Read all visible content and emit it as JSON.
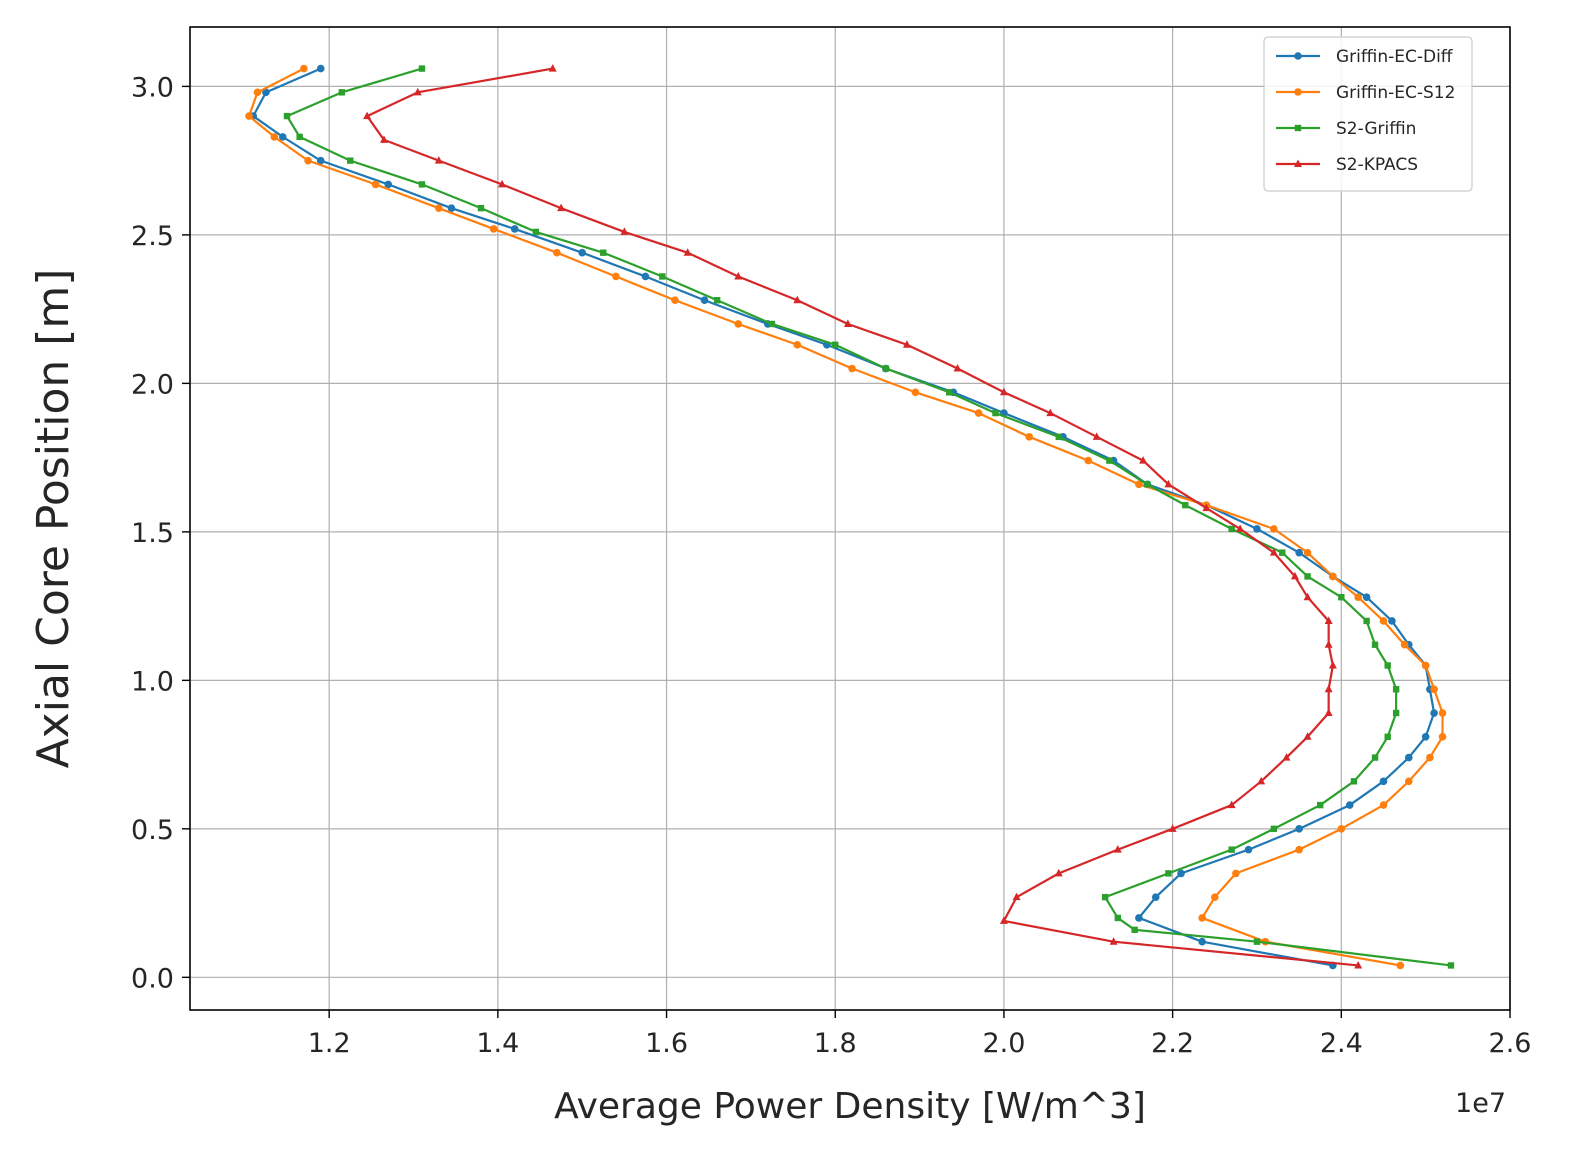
{
  "chart_data": {
    "type": "line",
    "title": "",
    "xlabel": "Average Power Density [W/m^3]",
    "ylabel": "Axial Core Position [m]",
    "x_offset_label": "1e7",
    "xlim": [
      1.035,
      2.6
    ],
    "ylim": [
      -0.11,
      3.2
    ],
    "x_ticks": [
      1.2,
      1.4,
      1.6,
      1.8,
      2.0,
      2.2,
      2.4,
      2.6
    ],
    "x_tick_labels": [
      "1.2",
      "1.4",
      "1.6",
      "1.8",
      "2.0",
      "2.2",
      "2.4",
      "2.6"
    ],
    "y_ticks": [
      0.0,
      0.5,
      1.0,
      1.5,
      2.0,
      2.5,
      3.0
    ],
    "y_tick_labels": [
      "0.0",
      "0.5",
      "1.0",
      "1.5",
      "2.0",
      "2.5",
      "3.0"
    ],
    "grid": true,
    "legend_position": "top-right",
    "series": [
      {
        "name": "Griffin-EC-Diff",
        "color": "#1f77b4",
        "marker": "circle",
        "points": [
          [
            2.39,
            0.04
          ],
          [
            2.235,
            0.12
          ],
          [
            2.16,
            0.2
          ],
          [
            2.18,
            0.27
          ],
          [
            2.21,
            0.35
          ],
          [
            2.29,
            0.43
          ],
          [
            2.35,
            0.5
          ],
          [
            2.41,
            0.58
          ],
          [
            2.45,
            0.66
          ],
          [
            2.48,
            0.74
          ],
          [
            2.5,
            0.81
          ],
          [
            2.51,
            0.89
          ],
          [
            2.505,
            0.97
          ],
          [
            2.5,
            1.05
          ],
          [
            2.48,
            1.12
          ],
          [
            2.46,
            1.2
          ],
          [
            2.43,
            1.28
          ],
          [
            2.39,
            1.35
          ],
          [
            2.35,
            1.43
          ],
          [
            2.3,
            1.51
          ],
          [
            2.24,
            1.59
          ],
          [
            2.17,
            1.66
          ],
          [
            2.13,
            1.74
          ],
          [
            2.07,
            1.82
          ],
          [
            2.0,
            1.9
          ],
          [
            1.94,
            1.97
          ],
          [
            1.86,
            2.05
          ],
          [
            1.79,
            2.13
          ],
          [
            1.72,
            2.2
          ],
          [
            1.645,
            2.28
          ],
          [
            1.575,
            2.36
          ],
          [
            1.5,
            2.44
          ],
          [
            1.42,
            2.52
          ],
          [
            1.345,
            2.59
          ],
          [
            1.27,
            2.67
          ],
          [
            1.19,
            2.75
          ],
          [
            1.145,
            2.83
          ],
          [
            1.11,
            2.9
          ],
          [
            1.125,
            2.98
          ],
          [
            1.19,
            3.06
          ]
        ]
      },
      {
        "name": "Griffin-EC-S12",
        "color": "#ff7f0e",
        "marker": "circle",
        "points": [
          [
            2.47,
            0.04
          ],
          [
            2.31,
            0.12
          ],
          [
            2.235,
            0.2
          ],
          [
            2.25,
            0.27
          ],
          [
            2.275,
            0.35
          ],
          [
            2.35,
            0.43
          ],
          [
            2.4,
            0.5
          ],
          [
            2.45,
            0.58
          ],
          [
            2.48,
            0.66
          ],
          [
            2.505,
            0.74
          ],
          [
            2.52,
            0.81
          ],
          [
            2.52,
            0.89
          ],
          [
            2.51,
            0.97
          ],
          [
            2.5,
            1.05
          ],
          [
            2.475,
            1.12
          ],
          [
            2.45,
            1.2
          ],
          [
            2.42,
            1.28
          ],
          [
            2.39,
            1.35
          ],
          [
            2.36,
            1.43
          ],
          [
            2.32,
            1.51
          ],
          [
            2.24,
            1.59
          ],
          [
            2.16,
            1.66
          ],
          [
            2.1,
            1.74
          ],
          [
            2.03,
            1.82
          ],
          [
            1.97,
            1.9
          ],
          [
            1.895,
            1.97
          ],
          [
            1.82,
            2.05
          ],
          [
            1.755,
            2.13
          ],
          [
            1.685,
            2.2
          ],
          [
            1.61,
            2.28
          ],
          [
            1.54,
            2.36
          ],
          [
            1.47,
            2.44
          ],
          [
            1.395,
            2.52
          ],
          [
            1.33,
            2.59
          ],
          [
            1.255,
            2.67
          ],
          [
            1.175,
            2.75
          ],
          [
            1.135,
            2.83
          ],
          [
            1.105,
            2.9
          ],
          [
            1.115,
            2.98
          ],
          [
            1.17,
            3.06
          ]
        ]
      },
      {
        "name": "S2-Griffin",
        "color": "#2ca02c",
        "marker": "square",
        "points": [
          [
            2.53,
            0.04
          ],
          [
            2.3,
            0.12
          ],
          [
            2.155,
            0.16
          ],
          [
            2.135,
            0.2
          ],
          [
            2.12,
            0.27
          ],
          [
            2.195,
            0.35
          ],
          [
            2.27,
            0.43
          ],
          [
            2.32,
            0.5
          ],
          [
            2.375,
            0.58
          ],
          [
            2.415,
            0.66
          ],
          [
            2.44,
            0.74
          ],
          [
            2.455,
            0.81
          ],
          [
            2.465,
            0.89
          ],
          [
            2.465,
            0.97
          ],
          [
            2.455,
            1.05
          ],
          [
            2.44,
            1.12
          ],
          [
            2.43,
            1.2
          ],
          [
            2.4,
            1.28
          ],
          [
            2.36,
            1.35
          ],
          [
            2.33,
            1.43
          ],
          [
            2.27,
            1.51
          ],
          [
            2.215,
            1.59
          ],
          [
            2.17,
            1.66
          ],
          [
            2.125,
            1.74
          ],
          [
            2.065,
            1.82
          ],
          [
            1.99,
            1.9
          ],
          [
            1.935,
            1.97
          ],
          [
            1.86,
            2.05
          ],
          [
            1.8,
            2.13
          ],
          [
            1.725,
            2.2
          ],
          [
            1.66,
            2.28
          ],
          [
            1.595,
            2.36
          ],
          [
            1.525,
            2.44
          ],
          [
            1.445,
            2.51
          ],
          [
            1.38,
            2.59
          ],
          [
            1.31,
            2.67
          ],
          [
            1.225,
            2.75
          ],
          [
            1.165,
            2.83
          ],
          [
            1.15,
            2.9
          ],
          [
            1.215,
            2.98
          ],
          [
            1.31,
            3.06
          ]
        ]
      },
      {
        "name": "S2-KPACS",
        "color": "#d62728",
        "marker": "triangle",
        "points": [
          [
            2.42,
            0.04
          ],
          [
            2.13,
            0.12
          ],
          [
            2.0,
            0.19
          ],
          [
            2.015,
            0.27
          ],
          [
            2.065,
            0.35
          ],
          [
            2.135,
            0.43
          ],
          [
            2.2,
            0.5
          ],
          [
            2.27,
            0.58
          ],
          [
            2.305,
            0.66
          ],
          [
            2.335,
            0.74
          ],
          [
            2.36,
            0.81
          ],
          [
            2.385,
            0.89
          ],
          [
            2.385,
            0.97
          ],
          [
            2.39,
            1.05
          ],
          [
            2.385,
            1.12
          ],
          [
            2.385,
            1.2
          ],
          [
            2.36,
            1.28
          ],
          [
            2.345,
            1.35
          ],
          [
            2.32,
            1.43
          ],
          [
            2.28,
            1.51
          ],
          [
            2.24,
            1.58
          ],
          [
            2.195,
            1.66
          ],
          [
            2.165,
            1.74
          ],
          [
            2.11,
            1.82
          ],
          [
            2.055,
            1.9
          ],
          [
            2.0,
            1.97
          ],
          [
            1.945,
            2.05
          ],
          [
            1.885,
            2.13
          ],
          [
            1.815,
            2.2
          ],
          [
            1.755,
            2.28
          ],
          [
            1.685,
            2.36
          ],
          [
            1.625,
            2.44
          ],
          [
            1.55,
            2.51
          ],
          [
            1.475,
            2.59
          ],
          [
            1.405,
            2.67
          ],
          [
            1.33,
            2.75
          ],
          [
            1.265,
            2.82
          ],
          [
            1.245,
            2.9
          ],
          [
            1.305,
            2.98
          ],
          [
            1.465,
            3.06
          ]
        ]
      }
    ]
  }
}
